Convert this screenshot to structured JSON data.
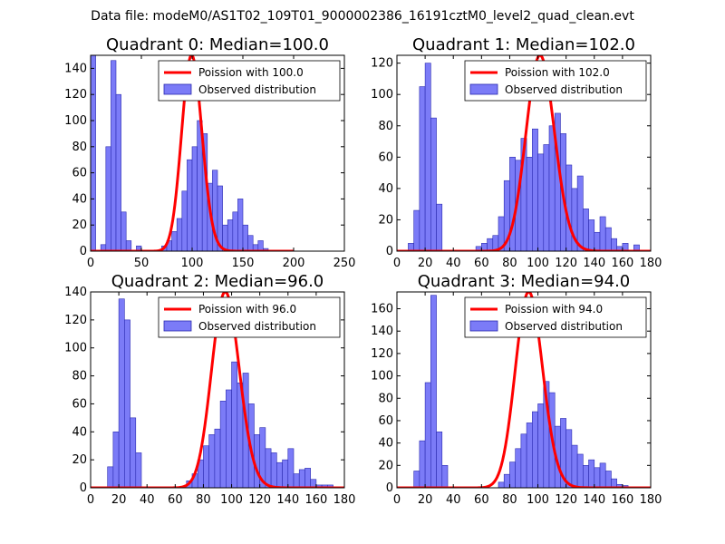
{
  "figure": {
    "suptitle": "Data file: modeM0/AS1T02_109T01_9000002386_16191cztM0_level2_quad_clean.evt"
  },
  "chart_data": [
    {
      "type": "bar",
      "title": "Quadrant 0: Median=100.0",
      "xlim": [
        0,
        250
      ],
      "ylim": [
        0,
        150
      ],
      "xticks": [
        0,
        50,
        100,
        150,
        200,
        250
      ],
      "yticks": [
        0,
        20,
        40,
        60,
        80,
        100,
        120,
        140
      ],
      "legend": {
        "line": "Poission with 100.0",
        "bars": "Observed distribution",
        "placement": "top-right"
      },
      "colors": {
        "bars": "#7b7bf7",
        "bar_edge": "#2b2bb0",
        "line": "#ff0000"
      },
      "histogram": {
        "bin_edges": [
          0,
          5,
          10,
          15,
          20,
          25,
          30,
          35,
          40,
          45,
          50,
          55,
          60,
          65,
          70,
          75,
          80,
          85,
          90,
          95,
          100,
          105,
          110,
          115,
          120,
          125,
          130,
          135,
          140,
          145,
          150,
          155,
          160,
          165,
          170,
          175,
          180,
          185,
          190,
          195,
          200
        ],
        "counts": [
          150,
          0,
          5,
          80,
          146,
          120,
          30,
          8,
          0,
          4,
          0,
          0,
          0,
          0,
          4,
          8,
          15,
          25,
          46,
          70,
          80,
          100,
          90,
          52,
          62,
          50,
          20,
          24,
          30,
          40,
          20,
          12,
          5,
          8,
          2,
          0,
          0,
          0,
          0,
          0
        ]
      },
      "poisson": {
        "mean": 100.0,
        "scale": 150,
        "x": [
          0,
          200
        ]
      }
    },
    {
      "type": "bar",
      "title": "Quadrant 1: Median=102.0",
      "xlim": [
        0,
        180
      ],
      "ylim": [
        0,
        125
      ],
      "xticks": [
        0,
        20,
        40,
        60,
        80,
        100,
        120,
        140,
        160,
        180
      ],
      "yticks": [
        0,
        20,
        40,
        60,
        80,
        100,
        120
      ],
      "legend": {
        "line": "Poission with 102.0",
        "bars": "Observed distribution",
        "placement": "top-right"
      },
      "colors": {
        "bars": "#7b7bf7",
        "bar_edge": "#2b2bb0",
        "line": "#ff0000"
      },
      "histogram": {
        "bin_edges": [
          0,
          4,
          8,
          12,
          16,
          20,
          24,
          28,
          32,
          36,
          40,
          44,
          48,
          52,
          56,
          60,
          64,
          68,
          72,
          76,
          80,
          84,
          88,
          92,
          96,
          100,
          104,
          108,
          112,
          116,
          120,
          124,
          128,
          132,
          136,
          140,
          144,
          148,
          152,
          156,
          160,
          164,
          168,
          172
        ],
        "counts": [
          0,
          0,
          5,
          26,
          105,
          120,
          85,
          30,
          0,
          0,
          0,
          0,
          0,
          0,
          3,
          5,
          8,
          10,
          22,
          45,
          60,
          58,
          72,
          60,
          78,
          62,
          68,
          80,
          88,
          75,
          55,
          40,
          48,
          27,
          20,
          12,
          22,
          15,
          8,
          3,
          5,
          0,
          4
        ]
      },
      "poisson": {
        "mean": 102.0,
        "scale": 125,
        "x": [
          0,
          180
        ]
      }
    },
    {
      "type": "bar",
      "title": "Quadrant 2: Median=96.0",
      "xlim": [
        0,
        180
      ],
      "ylim": [
        0,
        140
      ],
      "xticks": [
        0,
        20,
        40,
        60,
        80,
        100,
        120,
        140,
        160,
        180
      ],
      "yticks": [
        0,
        20,
        40,
        60,
        80,
        100,
        120,
        140
      ],
      "legend": {
        "line": "Poission with 96.0",
        "bars": "Observed distribution",
        "placement": "top-right"
      },
      "colors": {
        "bars": "#7b7bf7",
        "bar_edge": "#2b2bb0",
        "line": "#ff0000"
      },
      "histogram": {
        "bin_edges": [
          0,
          4,
          8,
          12,
          16,
          20,
          24,
          28,
          32,
          36,
          40,
          44,
          48,
          52,
          56,
          60,
          64,
          68,
          72,
          76,
          80,
          84,
          88,
          92,
          96,
          100,
          104,
          108,
          112,
          116,
          120,
          124,
          128,
          132,
          136,
          140,
          144,
          148,
          152,
          156,
          160,
          164,
          168,
          172
        ],
        "counts": [
          0,
          0,
          0,
          15,
          40,
          135,
          120,
          50,
          25,
          0,
          0,
          0,
          0,
          0,
          0,
          0,
          0,
          5,
          10,
          20,
          30,
          38,
          42,
          62,
          70,
          90,
          75,
          82,
          60,
          38,
          43,
          28,
          25,
          18,
          20,
          28,
          10,
          13,
          14,
          6,
          2,
          2,
          2
        ]
      },
      "poisson": {
        "mean": 96.0,
        "scale": 140,
        "x": [
          0,
          180
        ]
      }
    },
    {
      "type": "bar",
      "title": "Quadrant 3: Median=94.0",
      "xlim": [
        0,
        180
      ],
      "ylim": [
        0,
        175
      ],
      "xticks": [
        0,
        20,
        40,
        60,
        80,
        100,
        120,
        140,
        160,
        180
      ],
      "yticks": [
        0,
        20,
        40,
        60,
        80,
        100,
        120,
        140,
        160
      ],
      "legend": {
        "line": "Poission with 94.0",
        "bars": "Observed distribution",
        "placement": "top-right"
      },
      "colors": {
        "bars": "#7b7bf7",
        "bar_edge": "#2b2bb0",
        "line": "#ff0000"
      },
      "histogram": {
        "bin_edges": [
          0,
          4,
          8,
          12,
          16,
          20,
          24,
          28,
          32,
          36,
          40,
          44,
          48,
          52,
          56,
          60,
          64,
          68,
          72,
          76,
          80,
          84,
          88,
          92,
          96,
          100,
          104,
          108,
          112,
          116,
          120,
          124,
          128,
          132,
          136,
          140,
          144,
          148,
          152,
          156,
          160,
          164,
          168,
          172
        ],
        "counts": [
          0,
          0,
          0,
          15,
          42,
          94,
          172,
          50,
          20,
          0,
          0,
          0,
          0,
          0,
          0,
          0,
          0,
          0,
          5,
          12,
          23,
          35,
          48,
          58,
          68,
          75,
          95,
          85,
          55,
          62,
          52,
          38,
          30,
          20,
          25,
          18,
          22,
          15,
          8,
          3,
          2,
          0,
          0
        ]
      },
      "poisson": {
        "mean": 94.0,
        "scale": 175,
        "x": [
          0,
          180
        ]
      }
    }
  ]
}
